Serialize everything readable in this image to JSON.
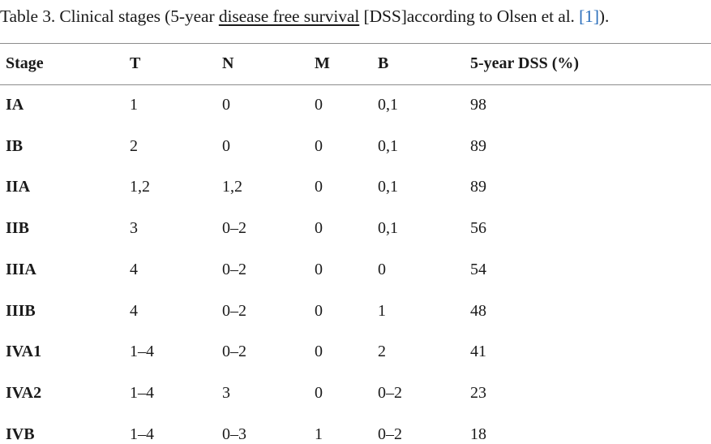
{
  "caption": {
    "prefix": "Table 3. Clinical stages (5-year ",
    "underlined": "disease free survival",
    "middle": " [DSS]according to Olsen et al. ",
    "ref": "[1]",
    "suffix": ")."
  },
  "table": {
    "headers": [
      "Stage",
      "T",
      "N",
      "M",
      "B",
      "5-year DSS (%)"
    ],
    "rows": [
      [
        "IA",
        "1",
        "0",
        "0",
        "0,1",
        "98"
      ],
      [
        "IB",
        "2",
        "0",
        "0",
        "0,1",
        "89"
      ],
      [
        "IIA",
        "1,2",
        "1,2",
        "0",
        "0,1",
        "89"
      ],
      [
        "IIB",
        "3",
        "0–2",
        "0",
        "0,1",
        "56"
      ],
      [
        "IIIA",
        "4",
        "0–2",
        "0",
        "0",
        "54"
      ],
      [
        "IIIB",
        "4",
        "0–2",
        "0",
        "1",
        "48"
      ],
      [
        "IVA1",
        "1–4",
        "0–2",
        "0",
        "2",
        "41"
      ],
      [
        "IVA2",
        "1–4",
        "3",
        "0",
        "0–2",
        "23"
      ],
      [
        "IVB",
        "1–4",
        "0–3",
        "1",
        "0–2",
        "18"
      ]
    ]
  }
}
